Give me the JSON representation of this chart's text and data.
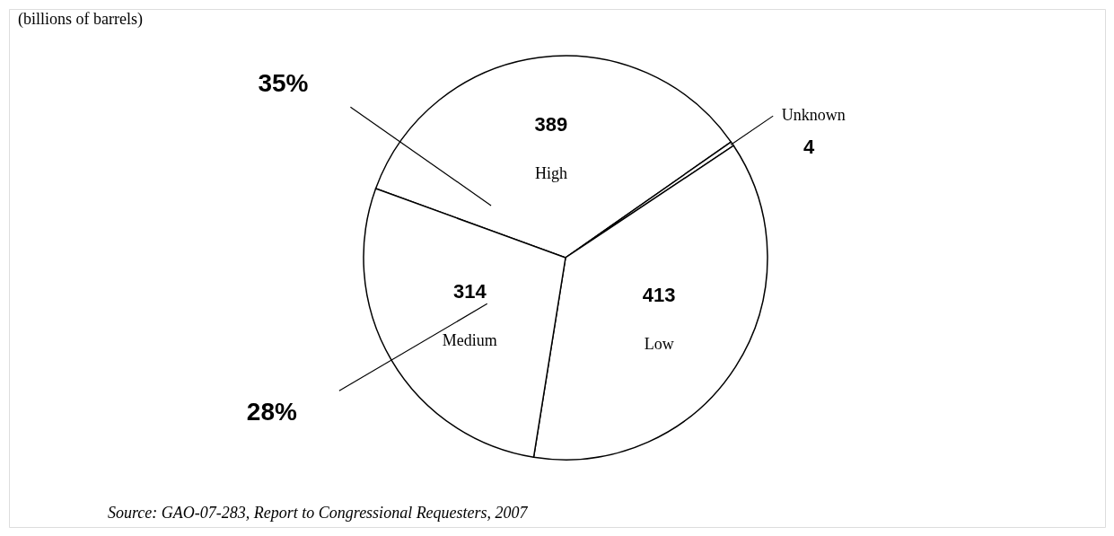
{
  "chart_data": {
    "type": "pie",
    "title": "(billions of barrels)",
    "categories": [
      "High",
      "Unknown",
      "Low",
      "Medium"
    ],
    "values": [
      389,
      4,
      413,
      314
    ],
    "colors": [
      "#ffffff",
      "#ffffff",
      "#ffffff",
      "#ffffff"
    ],
    "data_labels": true,
    "annotations": [
      {
        "text": "35%",
        "x": "High"
      },
      {
        "text": "28%",
        "x": "Medium"
      },
      "Source: GAO-07-283, Report to Congressional Requesters, 2007"
    ]
  }
}
